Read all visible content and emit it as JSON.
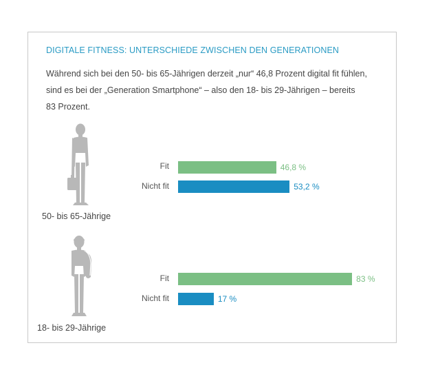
{
  "header": {
    "title": "DIGITALE FITNESS: UNTERSCHIEDE ZWISCHEN DEN GENERATIONEN",
    "subtitle_lines": [
      "Während sich bei den 50- bis 65-Jährigen derzeit „nur“ 46,8 Prozent digital fit fühlen,",
      "sind es bei der „Generation Smartphone“ – also den 18- bis 29-Jährigen – bereits",
      "83 Prozent."
    ]
  },
  "colors": {
    "fit": "#7bbf84",
    "nicht_fit": "#1a8dc2",
    "figure": "#b8b8b8",
    "title": "#2a9bc4"
  },
  "icons": [
    "businessman-figure-icon",
    "young-person-backpack-figure-icon"
  ],
  "chart_data": {
    "type": "bar",
    "orientation": "horizontal",
    "categories": [
      "Fit",
      "Nicht fit"
    ],
    "xlim": [
      0,
      100
    ],
    "groups": [
      {
        "name": "50- bis 65-Jährige",
        "series": [
          {
            "name": "Fit",
            "value": 46.8,
            "label": "46,8 %"
          },
          {
            "name": "Nicht fit",
            "value": 53.2,
            "label": "53,2 %"
          }
        ]
      },
      {
        "name": "18- bis 29-Jährige",
        "series": [
          {
            "name": "Fit",
            "value": 83,
            "label": "83 %"
          },
          {
            "name": "Nicht fit",
            "value": 17,
            "label": "17 %"
          }
        ]
      }
    ]
  }
}
